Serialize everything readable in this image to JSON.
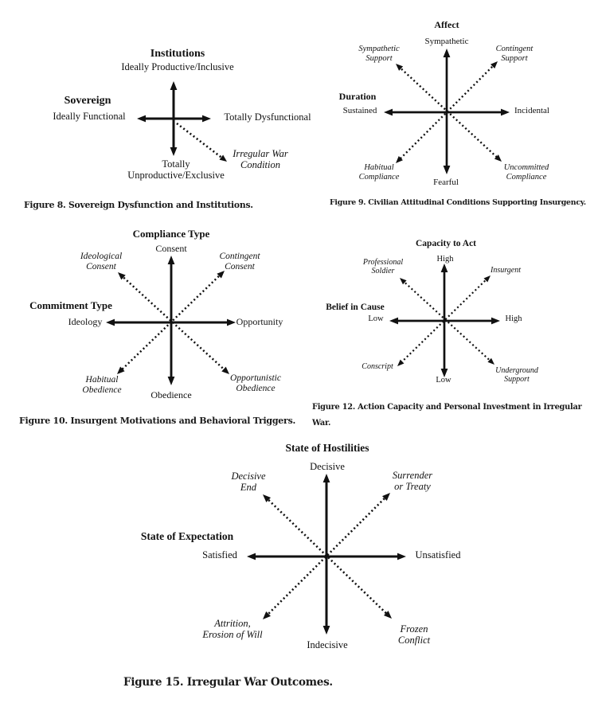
{
  "colors": {
    "background": "#ffffff",
    "ink": "#111111"
  },
  "figures": [
    {
      "caption": "Figure 8. Sovereign Dysfunction and Institutions.",
      "axes": {
        "vertical_title": "Institutions",
        "top": "Ideally Productive/Inclusive",
        "bottom": "Totally\nUnproductive/Exclusive",
        "horizontal_title": "Sovereign",
        "left": "Ideally Functional",
        "right": "Totally Dysfunctional"
      },
      "diagonals": {
        "bottom_right": "Irregular War\nCondition"
      }
    },
    {
      "caption": "Figure 9. Civilian Attitudinal Conditions Supporting Insurgency.",
      "axes": {
        "vertical_title": "Affect",
        "top": "Sympathetic",
        "bottom": "Fearful",
        "horizontal_title": "Duration",
        "left": "Sustained",
        "right": "Incidental"
      },
      "diagonals": {
        "top_left": "Sympathetic\nSupport",
        "top_right": "Contingent\nSupport",
        "bottom_left": "Habitual\nCompliance",
        "bottom_right": "Uncommitted\nCompliance"
      }
    },
    {
      "caption": "Figure 10. Insurgent Motivations and Behavioral Triggers.",
      "axes": {
        "vertical_title": "Compliance Type",
        "top": "Consent",
        "bottom": "Obedience",
        "horizontal_title": "Commitment Type",
        "left": "Ideology",
        "right": "Opportunity"
      },
      "diagonals": {
        "top_left": "Ideological\nConsent",
        "top_right": "Contingent\nConsent",
        "bottom_left": "Habitual\nObedience",
        "bottom_right": "Opportunistic\nObedience"
      }
    },
    {
      "caption": "Figure 12. Action Capacity and Personal Investment in Irregular\nWar.",
      "axes": {
        "vertical_title": "Capacity to Act",
        "top": "High",
        "bottom": "Low",
        "horizontal_title": "Belief in Cause",
        "left": "Low",
        "right": "High"
      },
      "diagonals": {
        "top_left": "Professional\nSoldier",
        "top_right": "Insurgent",
        "bottom_left": "Conscript",
        "bottom_right": "Underground\nSupport"
      }
    },
    {
      "caption": "Figure 15. Irregular War Outcomes.",
      "axes": {
        "vertical_title": "State of Hostilities",
        "top": "Decisive",
        "bottom": "Indecisive",
        "horizontal_title": "State of Expectation",
        "left": "Satisfied",
        "right": "Unsatisfied"
      },
      "diagonals": {
        "top_left": "Decisive\nEnd",
        "top_right": "Surrender\nor Treaty",
        "bottom_left": "Attrition,\nErosion of Will",
        "bottom_right": "Frozen\nConflict"
      }
    }
  ]
}
